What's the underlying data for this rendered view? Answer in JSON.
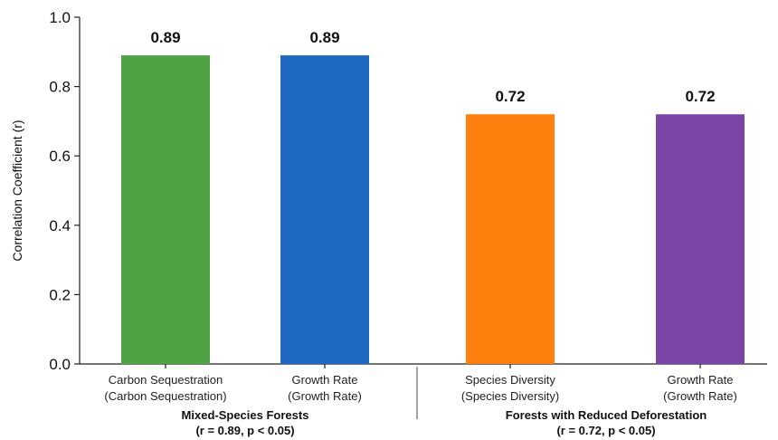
{
  "chart_data": {
    "type": "bar",
    "title": "",
    "ylabel": "Correlation Coefficient (r)",
    "xlabel": "",
    "ylim": [
      0,
      1.0
    ],
    "yticks": [
      "0.0",
      "0.2",
      "0.4",
      "0.6",
      "0.8",
      "1.0"
    ],
    "grid": false,
    "bars": [
      {
        "label_line1": "Carbon Sequestration",
        "label_line2": "(Carbon Sequestration)",
        "value": 0.89,
        "value_label": "0.89",
        "color": "#4fa345",
        "group": 0
      },
      {
        "label_line1": "Growth Rate",
        "label_line2": "(Growth Rate)",
        "value": 0.89,
        "value_label": "0.89",
        "color": "#1f68c1",
        "group": 0
      },
      {
        "label_line1": "Species Diversity",
        "label_line2": "(Species Diversity)",
        "value": 0.72,
        "value_label": "0.72",
        "color": "#ff7f0e",
        "group": 1
      },
      {
        "label_line1": "Growth Rate",
        "label_line2": "(Growth Rate)",
        "value": 0.72,
        "value_label": "0.72",
        "color": "#7b44a7",
        "group": 1
      }
    ],
    "groups": [
      {
        "name": "Mixed-Species Forests",
        "stat": "(r = 0.89, p < 0.05)"
      },
      {
        "name": "Forests with Reduced Deforestation",
        "stat": "(r = 0.72, p < 0.05)"
      }
    ]
  }
}
